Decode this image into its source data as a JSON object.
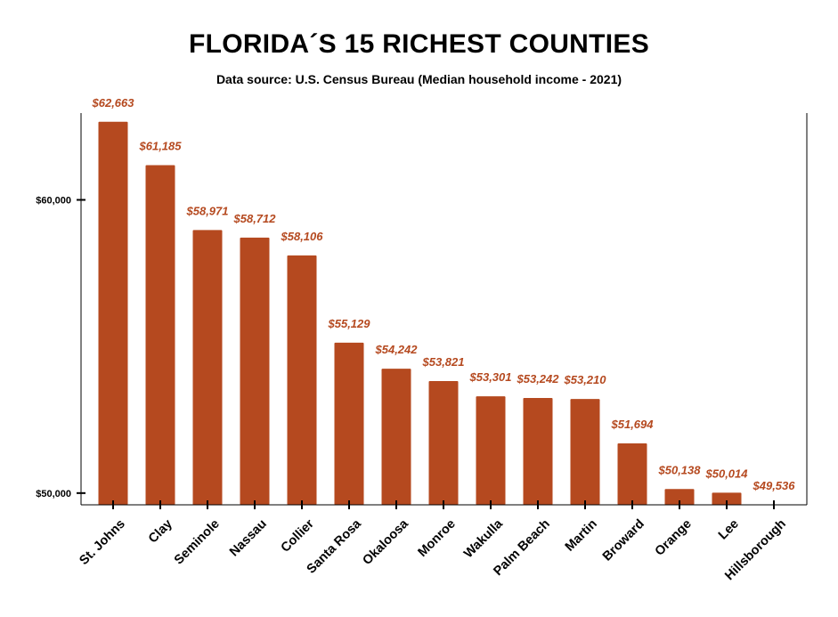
{
  "chart_data": {
    "type": "bar",
    "title": "FLORIDA´S 15 RICHEST COUNTIES",
    "subtitle": "Data source: U.S. Census Bureau (Median household income - 2021)",
    "categories": [
      "St. Johns",
      "Clay",
      "Seminole",
      "Nassau",
      "Collier",
      "Santa Rosa",
      "Okaloosa",
      "Monroe",
      "Wakulla",
      "Palm Beach",
      "Martin",
      "Broward",
      "Orange",
      "Lee",
      "Hillsborough"
    ],
    "values": [
      62663,
      61185,
      58971,
      58712,
      58106,
      55129,
      54242,
      53821,
      53301,
      53242,
      53210,
      51694,
      50138,
      50014,
      49536
    ],
    "value_labels": [
      "$62,663",
      "$61,185",
      "$58,971",
      "$58,712",
      "$58,106",
      "$55,129",
      "$54,242",
      "$53,821",
      "$53,301",
      "$53,242",
      "$53,210",
      "$51,694",
      "$50,138",
      "$50,014",
      "$49,536"
    ],
    "yticks": [
      50000,
      60000
    ],
    "ytick_labels": [
      "$50,000",
      "$60,000"
    ],
    "ylim": [
      49600,
      62960
    ],
    "xlabel": "",
    "ylabel": "",
    "grid": false,
    "bar_color": "#b5491f",
    "label_color": "#b5491f"
  }
}
